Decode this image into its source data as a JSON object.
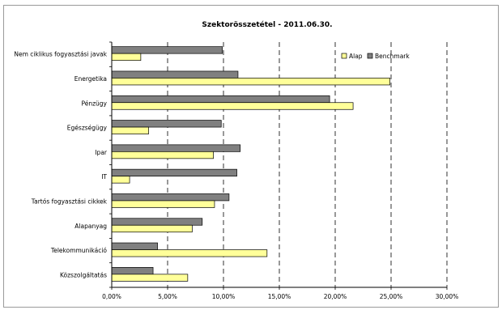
{
  "chart_data": {
    "type": "bar",
    "orientation": "horizontal",
    "title": "Szektorösszetétel - 2011.06.30.",
    "categories": [
      "Nem ciklikus fogyasztási javak",
      "Energetika",
      "Pénzügy",
      "Egészségügy",
      "Ipar",
      "IT",
      "Tartós fogyasztási cikkek",
      "Alapanyag",
      "Telekommunikáció",
      "Közszolgáltatás"
    ],
    "series": [
      {
        "name": "Alap",
        "color": "#ffff99",
        "values": [
          2.6,
          24.9,
          21.6,
          3.3,
          9.1,
          1.6,
          9.2,
          7.2,
          13.9,
          6.8
        ]
      },
      {
        "name": "Benchmark",
        "color": "#808080",
        "values": [
          9.9,
          11.3,
          19.5,
          9.8,
          11.5,
          11.2,
          10.5,
          8.1,
          4.1,
          3.7
        ]
      }
    ],
    "xlim": [
      0,
      30
    ],
    "xticks": [
      "0,00%",
      "5,00%",
      "10,00%",
      "15,00%",
      "20,00%",
      "25,00%",
      "30,00%"
    ],
    "grid": "vertical dashed",
    "legend_position": "top-right"
  }
}
